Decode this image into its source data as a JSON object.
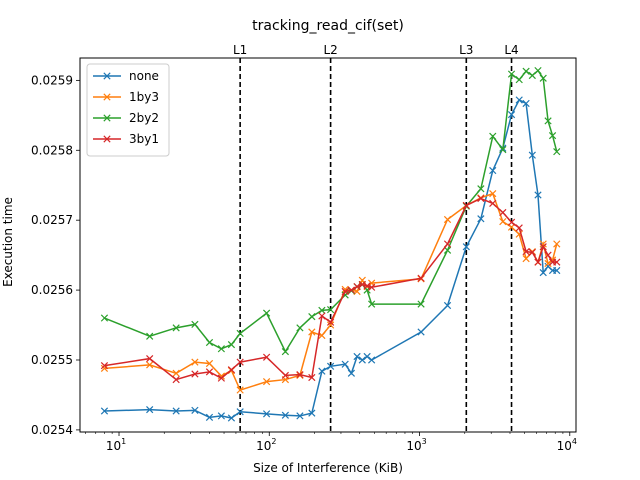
{
  "chart_data": {
    "type": "line",
    "title": "tracking_read_cif(set)",
    "xlabel": "Size of Interference (KiB)",
    "ylabel": "Execution time",
    "xscale": "log",
    "xlim": [
      5.5,
      11000
    ],
    "ylim": [
      0.025397,
      0.025932
    ],
    "x_ticks": [
      {
        "value": 10,
        "base": "10",
        "exp": "1"
      },
      {
        "value": 100,
        "base": "10",
        "exp": "2"
      },
      {
        "value": 1000,
        "base": "10",
        "exp": "3"
      },
      {
        "value": 10000,
        "base": "10",
        "exp": "4"
      }
    ],
    "y_ticks": [
      {
        "value": 0.0254,
        "label": "0.0254"
      },
      {
        "value": 0.0255,
        "label": "0.0255"
      },
      {
        "value": 0.0256,
        "label": "0.0256"
      },
      {
        "value": 0.0257,
        "label": "0.0257"
      },
      {
        "value": 0.0258,
        "label": "0.0258"
      },
      {
        "value": 0.0259,
        "label": "0.0259"
      }
    ],
    "vlines": [
      {
        "label": "L1",
        "x": 64
      },
      {
        "label": "L2",
        "x": 256
      },
      {
        "label": "L3",
        "x": 2048
      },
      {
        "label": "L4",
        "x": 4096
      }
    ],
    "legend_position": "top-left",
    "series": [
      {
        "name": "none",
        "color": "#1f77b4",
        "x": [
          8,
          16,
          24,
          32,
          40,
          48,
          56,
          64,
          96,
          128,
          160,
          192,
          224,
          256,
          320,
          352,
          384,
          416,
          448,
          480,
          1024,
          1536,
          2048,
          2560,
          3072,
          3584,
          4096,
          4608,
          5120,
          5632,
          6144,
          6656,
          7168,
          7680,
          8192
        ],
        "y": [
          0.025427,
          0.025429,
          0.025427,
          0.025428,
          0.025418,
          0.02542,
          0.025417,
          0.025426,
          0.025423,
          0.025421,
          0.02542,
          0.025424,
          0.025484,
          0.025491,
          0.025494,
          0.025481,
          0.025505,
          0.0255,
          0.025505,
          0.0255,
          0.02554,
          0.025578,
          0.025662,
          0.025702,
          0.025771,
          0.025803,
          0.025851,
          0.025872,
          0.025867,
          0.025793,
          0.025736,
          0.025625,
          0.025634,
          0.025628,
          0.025628
        ]
      },
      {
        "name": "1by3",
        "color": "#ff7f0e",
        "x": [
          8,
          16,
          24,
          32,
          40,
          48,
          56,
          64,
          96,
          128,
          160,
          192,
          224,
          256,
          320,
          352,
          384,
          416,
          448,
          480,
          1024,
          1536,
          2048,
          2560,
          3072,
          3584,
          4096,
          4608,
          5120,
          5632,
          6144,
          6656,
          7168,
          7680,
          8192
        ],
        "y": [
          0.025488,
          0.025493,
          0.025481,
          0.025497,
          0.025495,
          0.025477,
          0.025485,
          0.025457,
          0.025469,
          0.025472,
          0.025478,
          0.02554,
          0.025535,
          0.02555,
          0.025601,
          0.0256,
          0.025598,
          0.025614,
          0.025605,
          0.02561,
          0.025616,
          0.025701,
          0.025721,
          0.025732,
          0.025738,
          0.025698,
          0.02569,
          0.02568,
          0.025645,
          0.025655,
          0.02564,
          0.025666,
          0.025638,
          0.025643,
          0.025666
        ]
      },
      {
        "name": "2by2",
        "color": "#2ca02c",
        "x": [
          8,
          16,
          24,
          32,
          40,
          48,
          56,
          64,
          96,
          128,
          160,
          192,
          224,
          256,
          320,
          352,
          384,
          416,
          448,
          480,
          1024,
          1536,
          2048,
          2560,
          3072,
          3584,
          4096,
          4608,
          5120,
          5632,
          6144,
          6656,
          7168,
          7680,
          8192
        ],
        "y": [
          0.02556,
          0.025534,
          0.025546,
          0.025551,
          0.025525,
          0.025516,
          0.025522,
          0.025538,
          0.025567,
          0.025512,
          0.025546,
          0.025562,
          0.025571,
          0.025572,
          0.025593,
          0.025599,
          0.025605,
          0.025608,
          0.0256,
          0.02558,
          0.02558,
          0.025657,
          0.02572,
          0.025745,
          0.02582,
          0.025801,
          0.025909,
          0.025901,
          0.025913,
          0.025907,
          0.025914,
          0.025903,
          0.025842,
          0.025821,
          0.025798
        ]
      },
      {
        "name": "3by1",
        "color": "#d62728",
        "x": [
          8,
          16,
          24,
          32,
          40,
          48,
          56,
          64,
          96,
          128,
          160,
          192,
          224,
          256,
          320,
          352,
          384,
          416,
          448,
          480,
          1024,
          1536,
          2048,
          2560,
          3072,
          3584,
          4096,
          4608,
          5120,
          5632,
          6144,
          6656,
          7168,
          7680,
          8192
        ],
        "y": [
          0.025492,
          0.025502,
          0.025472,
          0.02548,
          0.025483,
          0.025474,
          0.025486,
          0.025497,
          0.025504,
          0.025478,
          0.025479,
          0.025475,
          0.025563,
          0.025554,
          0.025598,
          0.0256,
          0.025605,
          0.025608,
          0.025606,
          0.025604,
          0.025617,
          0.025666,
          0.025721,
          0.025731,
          0.025724,
          0.025711,
          0.025697,
          0.025689,
          0.025655,
          0.025654,
          0.02564,
          0.025662,
          0.02565,
          0.02564,
          0.02564
        ]
      }
    ]
  }
}
